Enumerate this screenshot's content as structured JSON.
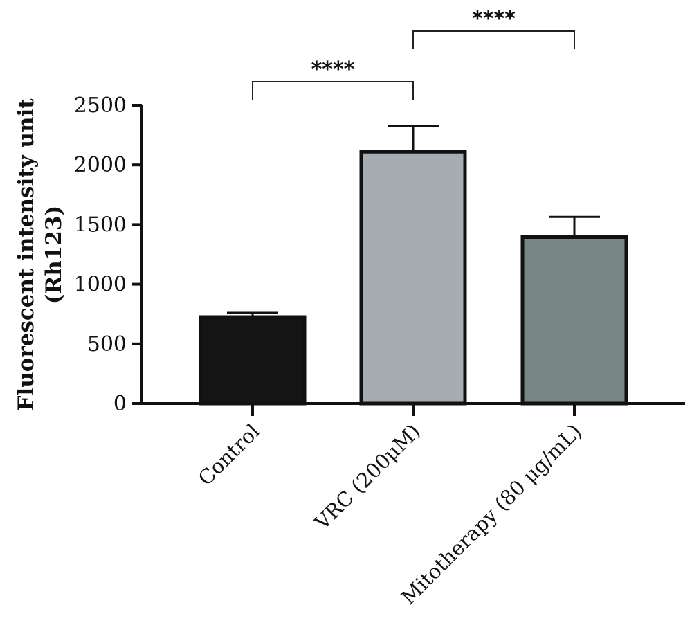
{
  "chart_data": {
    "type": "bar",
    "categories": [
      "Control",
      "VRC (200μM)",
      "Mitotherapy (80 μg/mL)"
    ],
    "values": [
      725,
      2110,
      1395
    ],
    "error": [
      35,
      215,
      170
    ],
    "title": "",
    "xlabel": "",
    "ylabel_lines": [
      "Fluorescent intensity unit",
      "(Rh123)"
    ],
    "ylim": [
      0,
      2500
    ],
    "yticks": [
      0,
      500,
      1000,
      1500,
      2000,
      2500
    ],
    "grid": false,
    "bar_colors": [
      "#141414",
      "#a6adb1",
      "#788683"
    ],
    "significance": [
      {
        "from": 0,
        "to": 1,
        "label": "****"
      },
      {
        "from": 1,
        "to": 2,
        "label": "****"
      }
    ]
  }
}
